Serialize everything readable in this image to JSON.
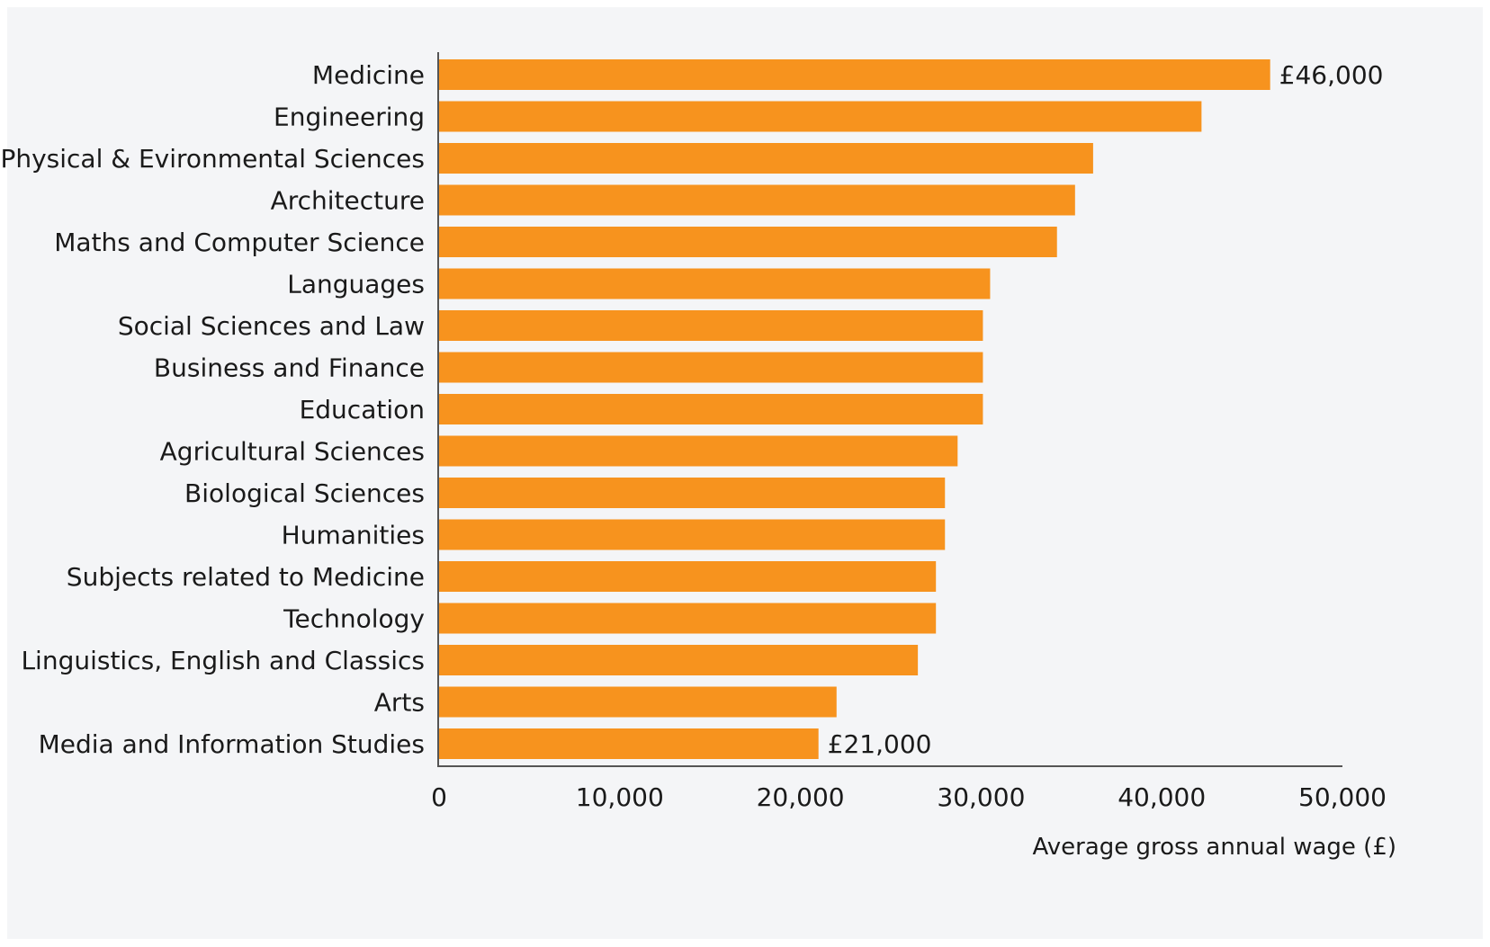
{
  "chart_data": {
    "type": "bar",
    "orientation": "horizontal",
    "categories": [
      "Medicine",
      "Engineering",
      "Physical & Evironmental Sciences",
      "Architecture",
      "Maths and Computer Science",
      "Languages",
      "Social Sciences and Law",
      "Business and Finance",
      "Education",
      "Agricultural Sciences",
      "Biological Sciences",
      "Humanities",
      "Subjects related to Medicine",
      "Technology",
      "Linguistics, English and Classics",
      "Arts",
      "Media and Information Studies"
    ],
    "values": [
      46000,
      42200,
      36200,
      35200,
      34200,
      30500,
      30100,
      30100,
      30100,
      28700,
      28000,
      28000,
      27500,
      27500,
      26500,
      22000,
      21000
    ],
    "data_labels": [
      {
        "category": "Medicine",
        "text": "£46,000"
      },
      {
        "category": "Media and Information Studies",
        "text": "£21,000"
      }
    ],
    "xlabel": "Average gross annual wage (£)",
    "xlim": [
      0,
      50000
    ],
    "xticks": [
      0,
      10000,
      20000,
      30000,
      40000,
      50000
    ],
    "xtick_labels": [
      "0",
      "10,000",
      "20,000",
      "30,000",
      "40,000",
      "50,000"
    ],
    "grid": false,
    "colors": {
      "bar": "#f7931e",
      "axis": "#555555",
      "background": "#f4f5f7"
    }
  }
}
